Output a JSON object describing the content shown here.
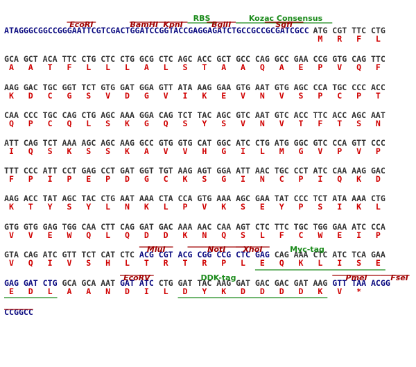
{
  "amino_acid_color": "#d00000",
  "rows": [
    {
      "segments": [
        {
          "color": "#0a0a80",
          "codons": [
            "ATAGGGCGGCCGGGAATTCGTCGACTGGATCCGGTACCGAGGAGATCTGCCGCCGCGATCGCC"
          ],
          "amino_acids": [
            null
          ]
        },
        {
          "color": "#333333",
          "codons": [
            "ATG",
            "CGT",
            "TTC",
            "CTG"
          ],
          "amino_acids": [
            "M",
            "R",
            "F",
            "L"
          ]
        }
      ]
    },
    {
      "segments": [
        {
          "color": "#333333",
          "codons": [
            "GCA",
            "GCT",
            "ACA",
            "TTC",
            "CTG",
            "CTC",
            "CTG",
            "GCG",
            "CTC",
            "AGC",
            "ACC",
            "GCT",
            "GCC",
            "CAG",
            "GCC",
            "GAA",
            "CCG",
            "GTG",
            "CAG",
            "TTC"
          ],
          "amino_acids": [
            "A",
            "A",
            "T",
            "F",
            "L",
            "L",
            "L",
            "A",
            "L",
            "S",
            "T",
            "A",
            "A",
            "Q",
            "A",
            "E",
            "P",
            "V",
            "Q",
            "F"
          ]
        }
      ]
    },
    {
      "segments": [
        {
          "color": "#333333",
          "codons": [
            "AAG",
            "GAC",
            "TGC",
            "GGT",
            "TCT",
            "GTG",
            "GAT",
            "GGA",
            "GTT",
            "ATA",
            "AAG",
            "GAA",
            "GTG",
            "AAT",
            "GTG",
            "AGC",
            "CCA",
            "TGC",
            "CCC",
            "ACC"
          ],
          "amino_acids": [
            "K",
            "D",
            "C",
            "G",
            "S",
            "V",
            "D",
            "G",
            "V",
            "I",
            "K",
            "E",
            "V",
            "N",
            "V",
            "S",
            "P",
            "C",
            "P",
            "T"
          ]
        }
      ]
    },
    {
      "segments": [
        {
          "color": "#333333",
          "codons": [
            "CAA",
            "CCC",
            "TGC",
            "CAG",
            "CTG",
            "AGC",
            "AAA",
            "GGA",
            "CAG",
            "TCT",
            "TAC",
            "AGC",
            "GTC",
            "AAT",
            "GTC",
            "ACC",
            "TTC",
            "ACC",
            "AGC",
            "AAT"
          ],
          "amino_acids": [
            "Q",
            "P",
            "C",
            "Q",
            "L",
            "S",
            "K",
            "G",
            "Q",
            "S",
            "Y",
            "S",
            "V",
            "N",
            "V",
            "T",
            "F",
            "T",
            "S",
            "N"
          ]
        }
      ]
    },
    {
      "segments": [
        {
          "color": "#333333",
          "codons": [
            "ATT",
            "CAG",
            "TCT",
            "AAA",
            "AGC",
            "AGC",
            "AAG",
            "GCC",
            "GTG",
            "GTG",
            "CAT",
            "GGC",
            "ATC",
            "CTG",
            "ATG",
            "GGC",
            "GTC",
            "CCA",
            "GTT",
            "CCC"
          ],
          "amino_acids": [
            "I",
            "Q",
            "S",
            "K",
            "S",
            "S",
            "K",
            "A",
            "V",
            "V",
            "H",
            "G",
            "I",
            "L",
            "M",
            "G",
            "V",
            "P",
            "V",
            "P"
          ]
        }
      ]
    },
    {
      "segments": [
        {
          "color": "#333333",
          "codons": [
            "TTT",
            "CCC",
            "ATT",
            "CCT",
            "GAG",
            "CCT",
            "GAT",
            "GGT",
            "TGT",
            "AAG",
            "AGT",
            "GGA",
            "ATT",
            "AAC",
            "TGC",
            "CCT",
            "ATC",
            "CAA",
            "AAG",
            "GAC"
          ],
          "amino_acids": [
            "F",
            "P",
            "I",
            "P",
            "E",
            "P",
            "D",
            "G",
            "C",
            "K",
            "S",
            "G",
            "I",
            "N",
            "C",
            "P",
            "I",
            "Q",
            "K",
            "D"
          ]
        }
      ]
    },
    {
      "segments": [
        {
          "color": "#333333",
          "codons": [
            "AAG",
            "ACC",
            "TAT",
            "AGC",
            "TAC",
            "CTG",
            "AAT",
            "AAA",
            "CTA",
            "CCA",
            "GTG",
            "AAA",
            "AGC",
            "GAA",
            "TAT",
            "CCC",
            "TCT",
            "ATA",
            "AAA",
            "CTG"
          ],
          "amino_acids": [
            "K",
            "T",
            "Y",
            "S",
            "Y",
            "L",
            "N",
            "K",
            "L",
            "P",
            "V",
            "K",
            "S",
            "E",
            "Y",
            "P",
            "S",
            "I",
            "K",
            "L"
          ]
        }
      ]
    },
    {
      "segments": [
        {
          "color": "#333333",
          "codons": [
            "GTG",
            "GTG",
            "GAG",
            "TGG",
            "CAA",
            "CTT",
            "CAG",
            "GAT",
            "GAC",
            "AAA",
            "AAC",
            "CAA",
            "AGT",
            "CTC",
            "TTC",
            "TGC",
            "TGG",
            "GAA",
            "ATC",
            "CCA"
          ],
          "amino_acids": [
            "V",
            "V",
            "E",
            "W",
            "Q",
            "L",
            "Q",
            "D",
            "D",
            "K",
            "N",
            "Q",
            "S",
            "L",
            "F",
            "C",
            "W",
            "E",
            "I",
            "P"
          ]
        }
      ]
    },
    {
      "segments": [
        {
          "color": "#333333",
          "codons": [
            "GTA",
            "CAG",
            "ATC",
            "GTT",
            "TCT",
            "CAT",
            "CTC"
          ],
          "amino_acids": [
            "V",
            "Q",
            "I",
            "V",
            "S",
            "H",
            "L"
          ]
        },
        {
          "color": "#0a0a80",
          "codons": [
            "ACG",
            "CGT",
            "ACG",
            "CGG",
            "CCG",
            "CTC",
            "GAG"
          ],
          "amino_acids": [
            "T",
            "R",
            "T",
            "R",
            "P",
            "L",
            "E"
          ]
        },
        {
          "color": "#333333",
          "codons": [
            "CAG",
            "AAA",
            "CTC",
            "ATC",
            "TCA",
            "GAA"
          ],
          "amino_acids": [
            "Q",
            "K",
            "L",
            "I",
            "S",
            "E"
          ]
        }
      ]
    },
    {
      "segments": [
        {
          "color": "#0a0a80",
          "codons": [
            "GAG",
            "GAT",
            "CTG"
          ],
          "amino_acids": [
            "E",
            "D",
            "L"
          ]
        },
        {
          "color": "#333333",
          "codons": [
            "GCA",
            "GCA",
            "AAT"
          ],
          "amino_acids": [
            "A",
            "A",
            "N"
          ]
        },
        {
          "color": "#0a0a80",
          "codons": [
            "GAT",
            "ATC"
          ],
          "amino_acids": [
            "D",
            "I"
          ]
        },
        {
          "color": "#333333",
          "codons": [
            "CTG",
            "GAT",
            "TAC",
            "AAG",
            "GAT",
            "GAC",
            "GAC",
            "GAT",
            "AAG"
          ],
          "amino_acids": [
            "L",
            "D",
            "Y",
            "K",
            "D",
            "D",
            "D",
            "D",
            "K"
          ]
        },
        {
          "color": "#0a0a80",
          "codons": [
            "GTT",
            "TAA",
            "ACGG"
          ],
          "amino_acids": [
            "V",
            "*",
            null
          ]
        }
      ]
    },
    {
      "segments": [
        {
          "color": "#0a0a80",
          "codons": [
            "CCGGCC"
          ],
          "amino_acids": [
            null
          ]
        }
      ]
    }
  ],
  "annotations": [
    {
      "text": "RBS",
      "color": "#1a8a1a"
    },
    {
      "text": "Kozac Consensus",
      "color": "#1a8a1a"
    },
    {
      "text": "EcoRI",
      "color": "#a00000"
    },
    {
      "text": "BamHI",
      "color": "#a00000"
    },
    {
      "text": "KpnI",
      "color": "#a00000"
    },
    {
      "text": "BglII",
      "color": "#a00000"
    },
    {
      "text": "SgfI",
      "color": "#a00000"
    },
    {
      "text": "MluI",
      "color": "#a00000"
    },
    {
      "text": "NotI",
      "color": "#a00000"
    },
    {
      "text": "XhoI",
      "color": "#a00000"
    },
    {
      "text": "Myc-tag",
      "color": "#1a8a1a"
    },
    {
      "text": "EcoRV",
      "color": "#a00000"
    },
    {
      "text": "DDK-tag",
      "color": "#1a8a1a"
    },
    {
      "text": "PmeI",
      "color": "#a00000"
    },
    {
      "text": "FseI",
      "color": "#a00000"
    }
  ]
}
